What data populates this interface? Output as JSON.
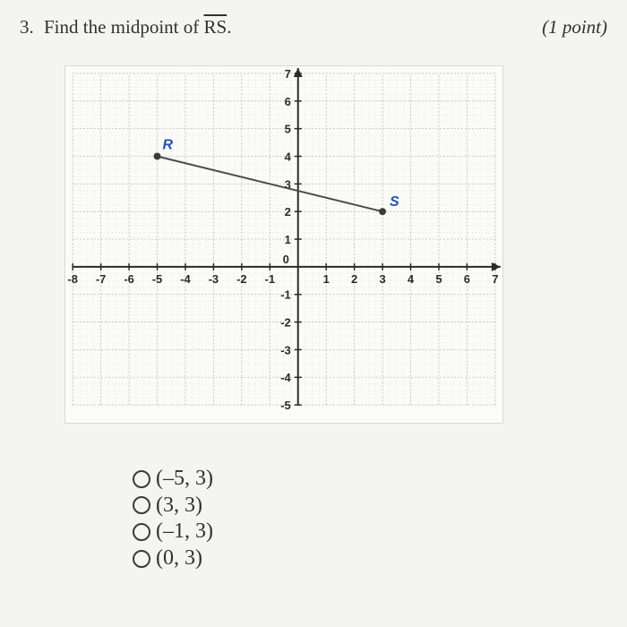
{
  "question": {
    "number": "3.",
    "prompt_prefix": "Find the midpoint of ",
    "segment_label": "RS",
    "suffix": ".",
    "points_label": "(1 point)"
  },
  "graph": {
    "xlim": [
      -8,
      7
    ],
    "ylim": [
      -5,
      7
    ],
    "xtick_min": -8,
    "xtick_max": 7,
    "xtick_step": 1,
    "ytick_min": -5,
    "ytick_max": 7,
    "ytick_step": 1,
    "grid_color": "#b9bcc4",
    "grid_sub_color": "#d7d9e0",
    "axis_color": "#2a2a2a",
    "tick_font_size": 13,
    "background_color": "#fbfbf7",
    "points": {
      "R": {
        "x": -5,
        "y": 4,
        "label": "R",
        "label_color": "#2a4fb2"
      },
      "S": {
        "x": 3,
        "y": 2,
        "label": "S",
        "label_color": "#2a4fb2"
      }
    },
    "segment_color": "#4a4a4a",
    "point_radius": 4,
    "point_color": "#3a3a3a"
  },
  "options": [
    {
      "label": "(–5, 3)"
    },
    {
      "label": "(3, 3)"
    },
    {
      "label": "(–1, 3)"
    },
    {
      "label": "(0, 3)"
    }
  ],
  "style": {
    "page_bg": "#f4f4f0"
  }
}
